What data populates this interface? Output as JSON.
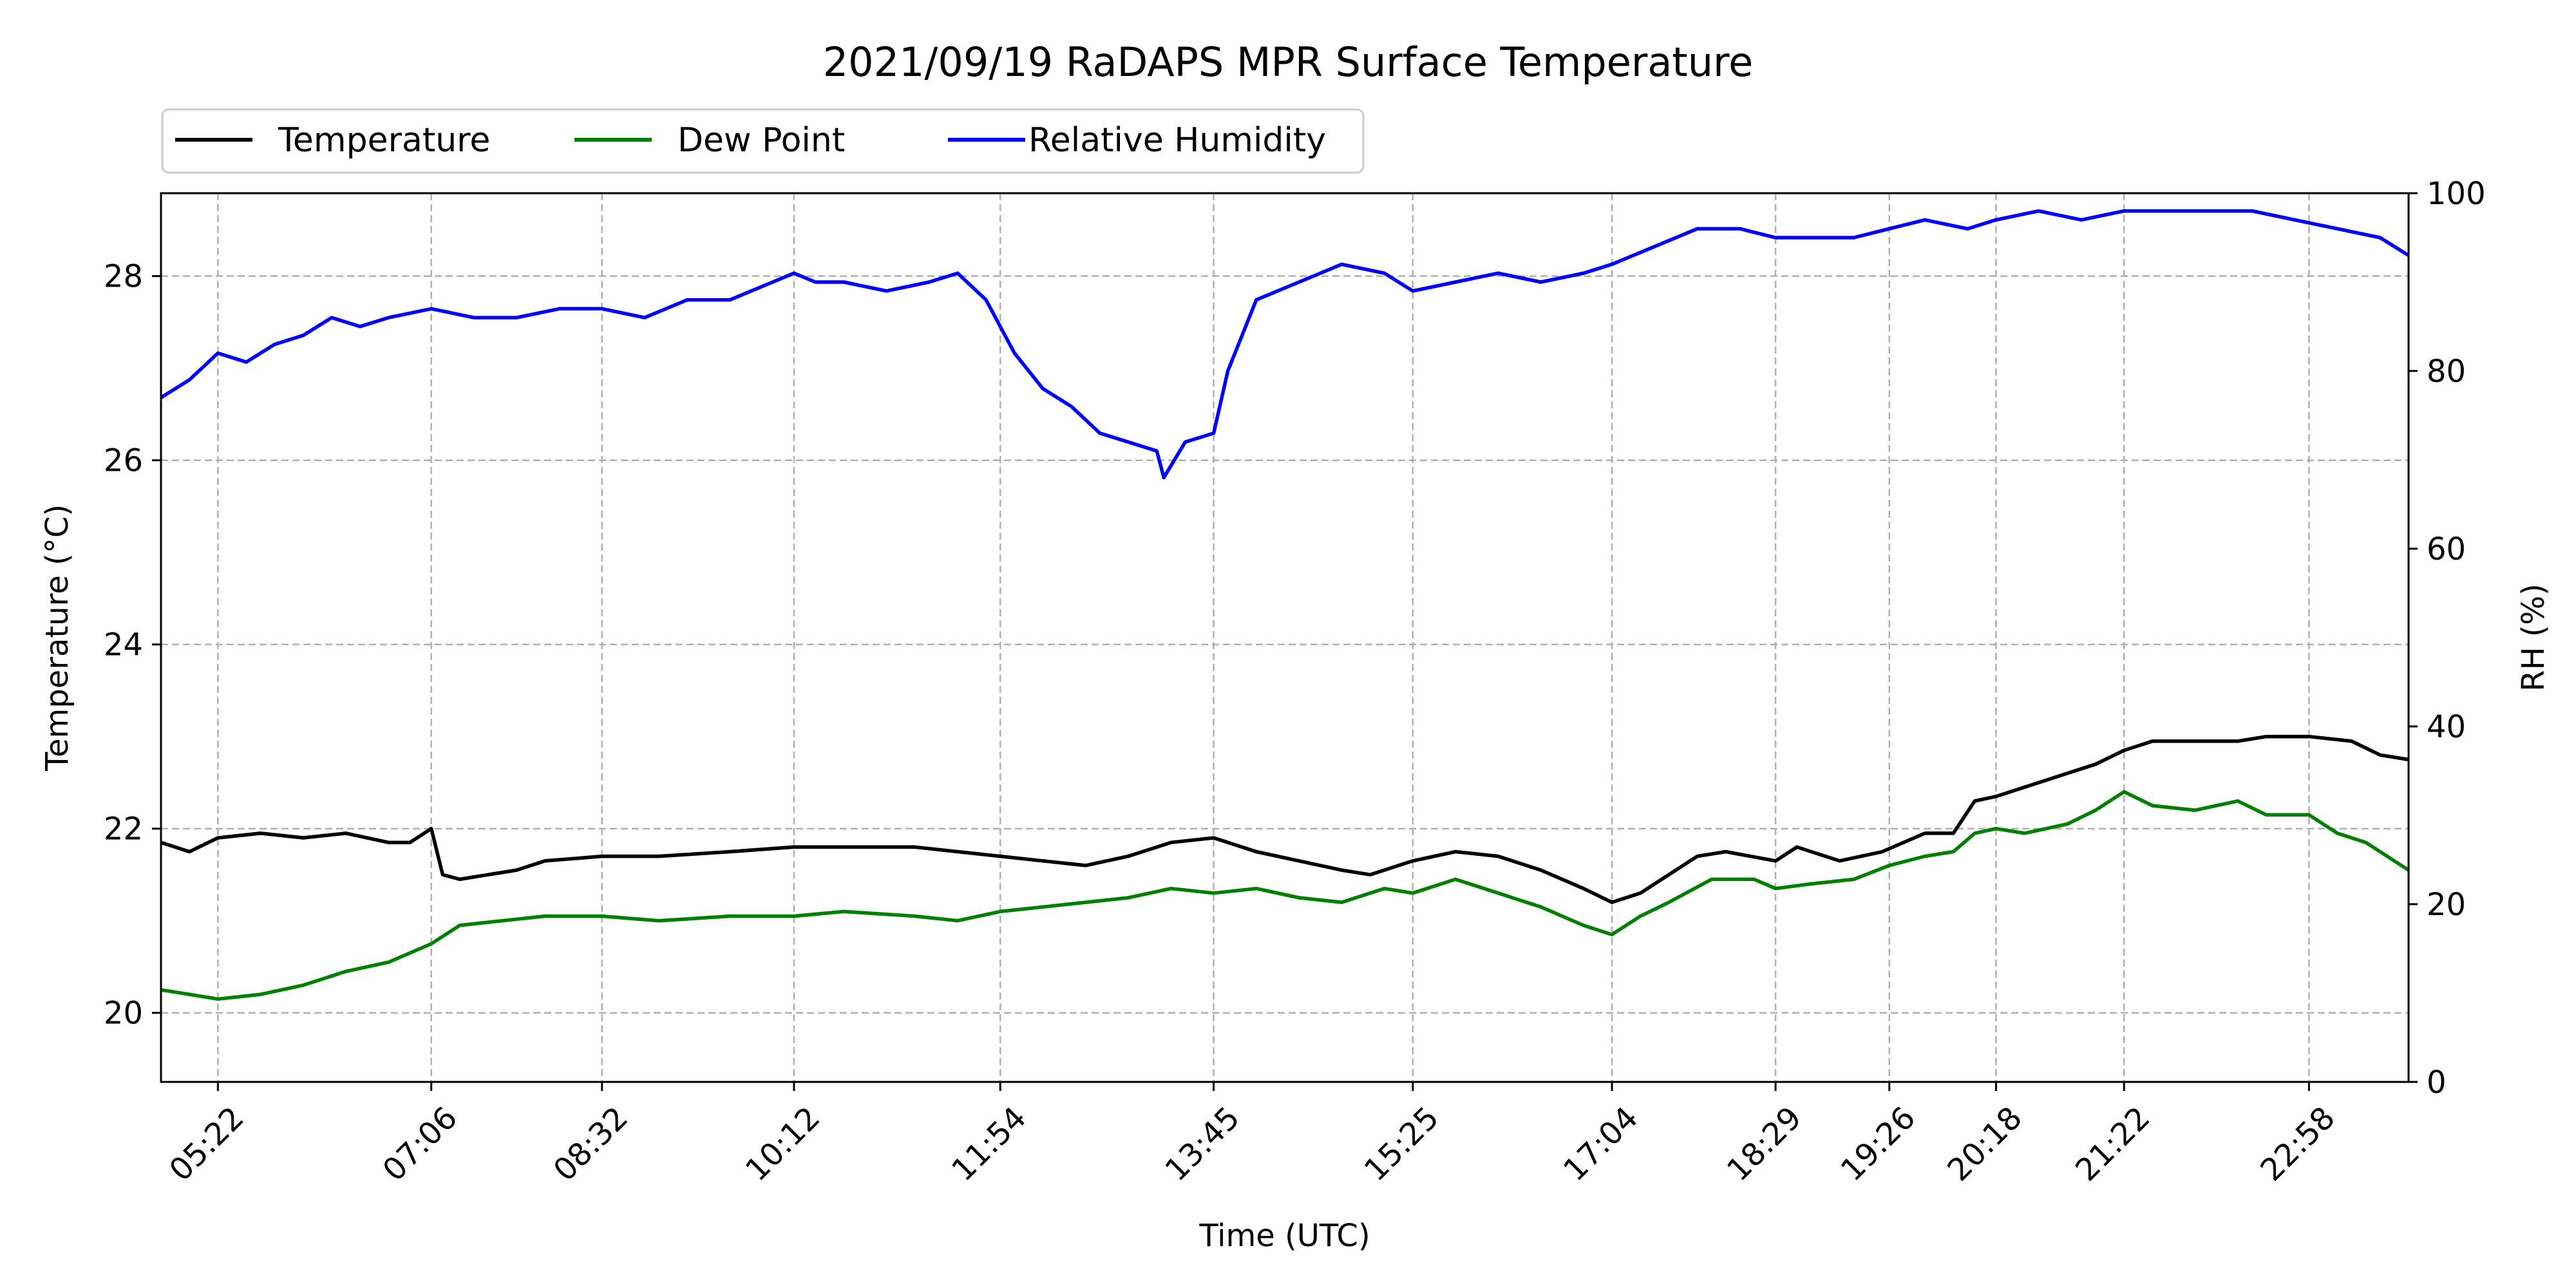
{
  "chart_data": {
    "type": "line",
    "title": "2021/09/19 RaDAPS MPR Surface Temperature",
    "xlabel": "Time (UTC)",
    "ylabel_left": "Temperature ($^\\circ$C)",
    "ylabel_left_display": "Temperature (°C)",
    "ylabel_right": "RH (%)",
    "x_ticks": [
      "05:22",
      "07:06",
      "08:32",
      "10:12",
      "11:54",
      "13:45",
      "15:25",
      "17:04",
      "18:29",
      "19:26",
      "20:18",
      "21:22",
      "22:58"
    ],
    "x_tick_index": [
      0.9,
      2.4,
      3.6,
      4.95,
      6.4,
      7.9,
      9.3,
      10.7,
      11.85,
      12.65,
      13.4,
      14.3,
      15.6
    ],
    "x_range_index": [
      0.5,
      16.3
    ],
    "ylim_left": [
      19.25,
      28.9
    ],
    "yticks_left": [
      20,
      22,
      24,
      26,
      28
    ],
    "ylim_right": [
      0,
      100
    ],
    "yticks_right": [
      0,
      20,
      40,
      60,
      80,
      100
    ],
    "grid": true,
    "legend_placement": "above-top-left",
    "series": [
      {
        "name": "Temperature",
        "axis": "left",
        "color": "#000000",
        "points": [
          [
            0.5,
            21.85
          ],
          [
            0.7,
            21.75
          ],
          [
            0.9,
            21.9
          ],
          [
            1.2,
            21.95
          ],
          [
            1.5,
            21.9
          ],
          [
            1.8,
            21.95
          ],
          [
            2.1,
            21.85
          ],
          [
            2.25,
            21.85
          ],
          [
            2.4,
            22.0
          ],
          [
            2.48,
            21.5
          ],
          [
            2.6,
            21.45
          ],
          [
            2.8,
            21.5
          ],
          [
            3.0,
            21.55
          ],
          [
            3.2,
            21.65
          ],
          [
            3.6,
            21.7
          ],
          [
            4.0,
            21.7
          ],
          [
            4.5,
            21.75
          ],
          [
            4.95,
            21.8
          ],
          [
            5.3,
            21.8
          ],
          [
            5.8,
            21.8
          ],
          [
            6.1,
            21.75
          ],
          [
            6.4,
            21.7
          ],
          [
            6.7,
            21.65
          ],
          [
            7.0,
            21.6
          ],
          [
            7.3,
            21.7
          ],
          [
            7.6,
            21.85
          ],
          [
            7.9,
            21.9
          ],
          [
            8.2,
            21.75
          ],
          [
            8.5,
            21.65
          ],
          [
            8.8,
            21.55
          ],
          [
            9.0,
            21.5
          ],
          [
            9.3,
            21.65
          ],
          [
            9.6,
            21.75
          ],
          [
            9.9,
            21.7
          ],
          [
            10.2,
            21.55
          ],
          [
            10.5,
            21.35
          ],
          [
            10.7,
            21.2
          ],
          [
            10.9,
            21.3
          ],
          [
            11.1,
            21.5
          ],
          [
            11.3,
            21.7
          ],
          [
            11.5,
            21.75
          ],
          [
            11.85,
            21.65
          ],
          [
            12.0,
            21.8
          ],
          [
            12.3,
            21.65
          ],
          [
            12.6,
            21.75
          ],
          [
            12.9,
            21.95
          ],
          [
            13.1,
            21.95
          ],
          [
            13.25,
            22.3
          ],
          [
            13.4,
            22.35
          ],
          [
            13.6,
            22.45
          ],
          [
            13.9,
            22.6
          ],
          [
            14.1,
            22.7
          ],
          [
            14.3,
            22.85
          ],
          [
            14.5,
            22.95
          ],
          [
            14.8,
            22.95
          ],
          [
            15.1,
            22.95
          ],
          [
            15.3,
            23.0
          ],
          [
            15.6,
            23.0
          ],
          [
            15.9,
            22.95
          ],
          [
            16.1,
            22.8
          ],
          [
            16.3,
            22.75
          ]
        ]
      },
      {
        "name": "Dew Point",
        "axis": "left",
        "color": "#008000",
        "points": [
          [
            0.5,
            20.25
          ],
          [
            0.7,
            20.2
          ],
          [
            0.9,
            20.15
          ],
          [
            1.2,
            20.2
          ],
          [
            1.5,
            20.3
          ],
          [
            1.8,
            20.45
          ],
          [
            2.1,
            20.55
          ],
          [
            2.4,
            20.75
          ],
          [
            2.6,
            20.95
          ],
          [
            2.9,
            21.0
          ],
          [
            3.2,
            21.05
          ],
          [
            3.6,
            21.05
          ],
          [
            4.0,
            21.0
          ],
          [
            4.5,
            21.05
          ],
          [
            4.95,
            21.05
          ],
          [
            5.3,
            21.1
          ],
          [
            5.8,
            21.05
          ],
          [
            6.1,
            21.0
          ],
          [
            6.4,
            21.1
          ],
          [
            6.7,
            21.15
          ],
          [
            7.0,
            21.2
          ],
          [
            7.3,
            21.25
          ],
          [
            7.6,
            21.35
          ],
          [
            7.9,
            21.3
          ],
          [
            8.2,
            21.35
          ],
          [
            8.5,
            21.25
          ],
          [
            8.8,
            21.2
          ],
          [
            9.1,
            21.35
          ],
          [
            9.3,
            21.3
          ],
          [
            9.6,
            21.45
          ],
          [
            9.9,
            21.3
          ],
          [
            10.2,
            21.15
          ],
          [
            10.5,
            20.95
          ],
          [
            10.7,
            20.85
          ],
          [
            10.9,
            21.05
          ],
          [
            11.1,
            21.2
          ],
          [
            11.4,
            21.45
          ],
          [
            11.7,
            21.45
          ],
          [
            11.85,
            21.35
          ],
          [
            12.1,
            21.4
          ],
          [
            12.4,
            21.45
          ],
          [
            12.65,
            21.6
          ],
          [
            12.9,
            21.7
          ],
          [
            13.1,
            21.75
          ],
          [
            13.25,
            21.95
          ],
          [
            13.4,
            22.0
          ],
          [
            13.6,
            21.95
          ],
          [
            13.9,
            22.05
          ],
          [
            14.1,
            22.2
          ],
          [
            14.3,
            22.4
          ],
          [
            14.5,
            22.25
          ],
          [
            14.8,
            22.2
          ],
          [
            15.1,
            22.3
          ],
          [
            15.3,
            22.15
          ],
          [
            15.6,
            22.15
          ],
          [
            15.8,
            21.95
          ],
          [
            16.0,
            21.85
          ],
          [
            16.3,
            21.55
          ]
        ]
      },
      {
        "name": "Relative Humidity",
        "axis": "right",
        "color": "#0000ff",
        "points": [
          [
            0.5,
            77
          ],
          [
            0.7,
            79
          ],
          [
            0.9,
            82
          ],
          [
            1.1,
            81
          ],
          [
            1.3,
            83
          ],
          [
            1.5,
            84
          ],
          [
            1.7,
            86
          ],
          [
            1.9,
            85
          ],
          [
            2.1,
            86
          ],
          [
            2.4,
            87
          ],
          [
            2.7,
            86
          ],
          [
            3.0,
            86
          ],
          [
            3.3,
            87
          ],
          [
            3.6,
            87
          ],
          [
            3.9,
            86
          ],
          [
            4.2,
            88
          ],
          [
            4.5,
            88
          ],
          [
            4.8,
            90
          ],
          [
            4.95,
            91
          ],
          [
            5.1,
            90
          ],
          [
            5.3,
            90
          ],
          [
            5.6,
            89
          ],
          [
            5.9,
            90
          ],
          [
            6.1,
            91
          ],
          [
            6.3,
            88
          ],
          [
            6.5,
            82
          ],
          [
            6.7,
            78
          ],
          [
            6.9,
            76
          ],
          [
            7.1,
            73
          ],
          [
            7.3,
            72
          ],
          [
            7.5,
            71
          ],
          [
            7.55,
            68
          ],
          [
            7.7,
            72
          ],
          [
            7.9,
            73
          ],
          [
            8.0,
            80
          ],
          [
            8.2,
            88
          ],
          [
            8.5,
            90
          ],
          [
            8.8,
            92
          ],
          [
            9.1,
            91
          ],
          [
            9.3,
            89
          ],
          [
            9.6,
            90
          ],
          [
            9.9,
            91
          ],
          [
            10.2,
            90
          ],
          [
            10.5,
            91
          ],
          [
            10.7,
            92
          ],
          [
            11.0,
            94
          ],
          [
            11.3,
            96
          ],
          [
            11.6,
            96
          ],
          [
            11.85,
            95
          ],
          [
            12.1,
            95
          ],
          [
            12.4,
            95
          ],
          [
            12.65,
            96
          ],
          [
            12.9,
            97
          ],
          [
            13.2,
            96
          ],
          [
            13.4,
            97
          ],
          [
            13.7,
            98
          ],
          [
            14.0,
            97
          ],
          [
            14.3,
            98
          ],
          [
            14.6,
            98
          ],
          [
            14.9,
            98
          ],
          [
            15.2,
            98
          ],
          [
            15.5,
            97
          ],
          [
            15.8,
            96
          ],
          [
            16.1,
            95
          ],
          [
            16.3,
            93
          ]
        ]
      }
    ]
  }
}
